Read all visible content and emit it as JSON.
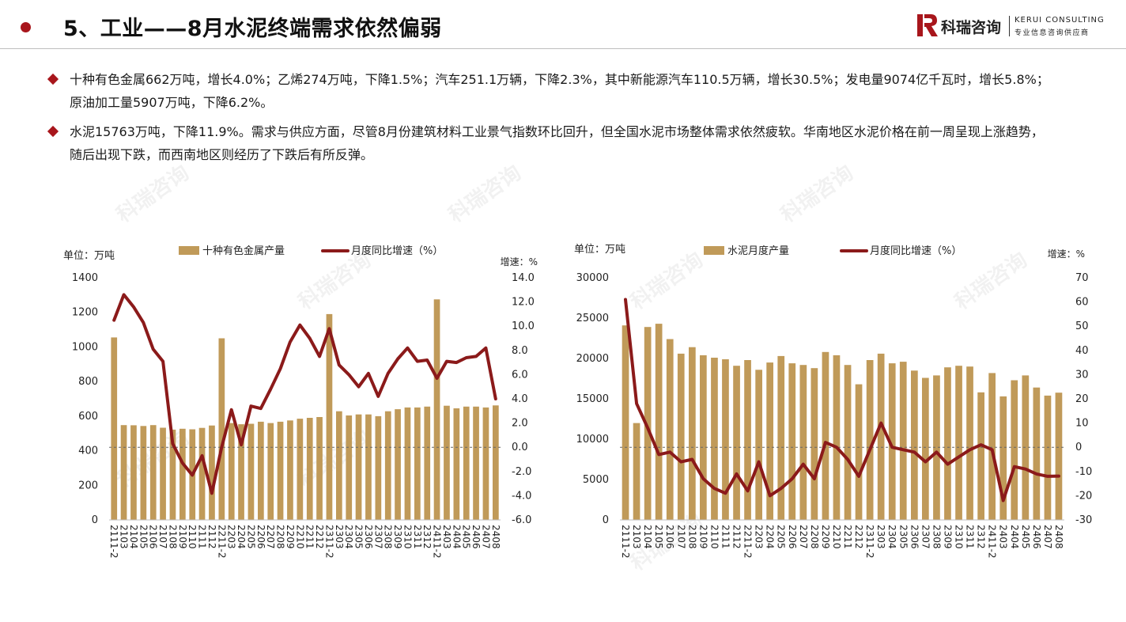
{
  "header": {
    "title": "5、工业——8月水泥终端需求依然偏弱"
  },
  "logo": {
    "cn": "科瑞咨询",
    "en": "KERUI CONSULTING",
    "sub": "专业信息咨询供应商"
  },
  "bullets": [
    {
      "text": "十种有色金属662万吨，增长4.0%；乙烯274万吨，下降1.5%；汽车251.1万辆，下降2.3%，其中新能源汽车110.5万辆，增长30.5%；发电量9074亿千瓦时，增长5.8%；原油加工量5907万吨，下降6.2%。"
    },
    {
      "text": "水泥15763万吨，下降11.9%。需求与供应方面，尽管8月份建筑材料工业景气指数环比回升，但全国水泥市场整体需求依然疲软。华南地区水泥价格在前一周呈现上涨趋势，随后出现下跌，而西南地区则经历了下跌后有所反弹。"
    }
  ],
  "watermark": "科瑞咨询",
  "colors": {
    "bar": "#c09a59",
    "line": "#8b1a1a",
    "accent": "#a8161c"
  },
  "chart_data": [
    {
      "type": "bar+line",
      "unit_label": "单位：万吨",
      "right_unit_label": "增速：%",
      "legend": [
        "十种有色金属产量",
        "月度同比增速（%）"
      ],
      "categories": [
        "2111-2",
        "2103",
        "2104",
        "2105",
        "2106",
        "2107",
        "2108",
        "2109",
        "2110",
        "2111",
        "2112",
        "2211-2",
        "2203",
        "2204",
        "2205",
        "2206",
        "2207",
        "2208",
        "2209",
        "2210",
        "2211",
        "2212",
        "2311-2",
        "2303",
        "2304",
        "2305",
        "2306",
        "2307",
        "2308",
        "2309",
        "2310",
        "2311",
        "2312",
        "2411-2",
        "2403",
        "2404",
        "2405",
        "2406",
        "2407",
        "2408"
      ],
      "x_ticks": [
        "2111-2",
        "2103",
        "2104",
        "2105",
        "2106",
        "2107",
        "2108",
        "2109",
        "2110",
        "2111",
        "2112",
        "2211-2",
        "2203",
        "2204",
        "2205",
        "2206",
        "2207",
        "2208",
        "2209",
        "2210",
        "2211",
        "2212",
        "2311-2",
        "2303",
        "2304",
        "2305",
        "2306",
        "2307",
        "2308",
        "2309",
        "2310",
        "2311",
        "2312",
        "2411-2",
        "2403",
        "2404",
        "2405",
        "2406",
        "2407",
        "2408"
      ],
      "bars": [
        1055,
        548,
        547,
        543,
        548,
        533,
        522,
        527,
        524,
        532,
        546,
        1050,
        560,
        553,
        556,
        568,
        560,
        568,
        575,
        585,
        590,
        595,
        1190,
        628,
        604,
        610,
        610,
        600,
        628,
        640,
        650,
        650,
        655,
        1275,
        660,
        645,
        655,
        655,
        650,
        662
      ],
      "line": [
        10.5,
        12.6,
        11.6,
        10.3,
        8.1,
        7.1,
        0.3,
        -1.3,
        -2.3,
        -0.7,
        -3.8,
        0.0,
        3.1,
        0.2,
        3.4,
        3.2,
        4.8,
        6.5,
        8.7,
        10.1,
        9.0,
        7.5,
        9.8,
        6.8,
        6.0,
        5.0,
        6.1,
        4.2,
        6.1,
        7.3,
        8.2,
        7.1,
        7.2,
        5.7,
        7.1,
        7.0,
        7.4,
        7.5,
        8.2,
        4.0
      ],
      "y_left": [
        0,
        1400
      ],
      "y_left_ticks": [
        0,
        200,
        400,
        600,
        800,
        1000,
        1200,
        1400
      ],
      "y_right": [
        -6,
        14
      ],
      "y_right_ticks": [
        "-6.0",
        "-4.0",
        "-2.0",
        "0.0",
        "2.0",
        "4.0",
        "6.0",
        "8.0",
        "10.0",
        "12.0",
        "14.0"
      ]
    },
    {
      "type": "bar+line",
      "unit_label": "单位：万吨",
      "right_unit_label": "增速：%",
      "legend": [
        "水泥月度产量",
        "月度同比增速（%）"
      ],
      "categories": [
        "2111-2",
        "2103",
        "2104",
        "2105",
        "2106",
        "2107",
        "2108",
        "2109",
        "2110",
        "2111",
        "2112",
        "2211-2",
        "2203",
        "2204",
        "2205",
        "2206",
        "2207",
        "2208",
        "2209",
        "2210",
        "2211",
        "2212",
        "2311-2",
        "2303",
        "2304",
        "2305",
        "2306",
        "2307",
        "2308",
        "2309",
        "2310",
        "2311",
        "2312",
        "2411-2",
        "2403",
        "2404",
        "2405",
        "2406",
        "2407",
        "2408"
      ],
      "x_ticks": [
        "2111-2",
        "2103",
        "2104",
        "2105",
        "2106",
        "2107",
        "2108",
        "2109",
        "2110",
        "2111",
        "2112",
        "2211-2",
        "2203",
        "2204",
        "2205",
        "2206",
        "2207",
        "2208",
        "2209",
        "2210",
        "2211",
        "2212",
        "2311-2",
        "2303",
        "2304",
        "2305",
        "2306",
        "2307",
        "2308",
        "2309",
        "2310",
        "2311",
        "2312",
        "2411-2",
        "2403",
        "2404",
        "2405",
        "2406",
        "2407",
        "2408"
      ],
      "bars": [
        24100,
        12000,
        23900,
        24300,
        22400,
        20600,
        21400,
        20400,
        20100,
        19900,
        19100,
        19800,
        18600,
        19500,
        20300,
        19400,
        19200,
        18800,
        20800,
        20400,
        19200,
        16800,
        19800,
        20600,
        19400,
        19600,
        18500,
        17600,
        17900,
        18900,
        19100,
        19000,
        15800,
        18200,
        15300,
        17300,
        17900,
        16400,
        15400,
        15763
      ],
      "line": [
        61,
        18,
        8,
        -3,
        -2,
        -6,
        -5,
        -13,
        -17,
        -19,
        -11,
        -18,
        -6,
        -20,
        -17,
        -13,
        -7,
        -13,
        2,
        0,
        -5,
        -12,
        -1,
        10,
        0,
        -1,
        -2,
        -6,
        -2,
        -7,
        -4,
        -1,
        1,
        -1,
        -22,
        -8,
        -9,
        -11,
        -12,
        -11.9
      ],
      "y_left": [
        0,
        30000
      ],
      "y_left_ticks": [
        0,
        5000,
        10000,
        15000,
        20000,
        25000,
        30000
      ],
      "y_right": [
        -30,
        70
      ],
      "y_right_ticks": [
        "-30",
        "-20",
        "-10",
        "0",
        "10",
        "20",
        "30",
        "40",
        "50",
        "60",
        "70"
      ]
    }
  ]
}
